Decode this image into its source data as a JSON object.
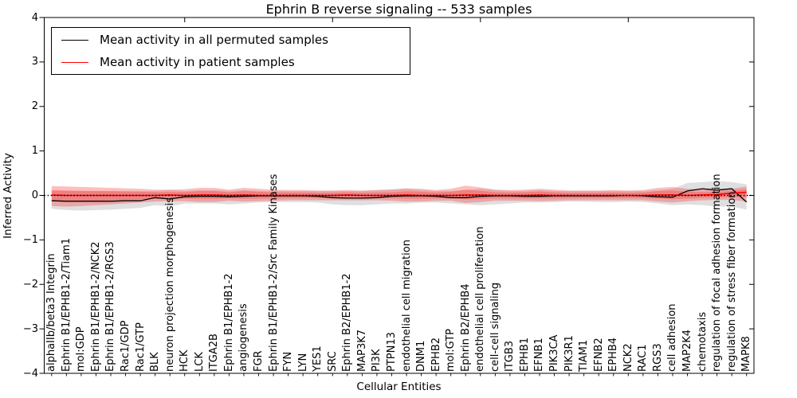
{
  "figure": {
    "title": "Ephrin B reverse signaling -- 533 samples",
    "xlabel": "Cellular Entities",
    "ylabel": "Inferred Activity"
  },
  "legend": {
    "position": "upper left",
    "entries": [
      {
        "label": "Mean activity in all permuted samples",
        "color": "#000000"
      },
      {
        "label": "Mean activity in patient samples",
        "color": "#ff0000"
      }
    ]
  },
  "chart_data": {
    "type": "line",
    "title": "Ephrin B reverse signaling -- 533 samples",
    "xlabel": "Cellular Entities",
    "ylabel": "Inferred Activity",
    "ylim": [
      -4,
      4
    ],
    "ytick_labels": [
      "4",
      "3",
      "2",
      "1",
      "0",
      "−1",
      "−2",
      "−3",
      "−4"
    ],
    "ytick_values": [
      4,
      3,
      2,
      1,
      0,
      -1,
      -2,
      -3,
      -4
    ],
    "xticks_top_values": [
      10,
      20,
      30,
      40
    ],
    "grid": false,
    "zero_line": {
      "value": 0,
      "style": "dotted",
      "color": "#000000"
    },
    "categories": [
      "alphaIIb/beta3 Integrin",
      "Ephrin B1/EPHB1-2/Tiam1",
      "mol:GDP",
      "Ephrin B1/EPHB1-2/NCK2",
      "Ephrin B1/EPHB1-2/RGS3",
      "Rac1/GDP",
      "Rac1/GTP",
      "BLK",
      "neuron projection morphogenesis",
      "HCK",
      "LCK",
      "ITGA2B",
      "Ephrin B1/EPHB1-2",
      "angiogenesis",
      "FGR",
      "Ephrin B1/EPHB1-2/Src Family Kinases",
      "FYN",
      "LYN",
      "YES1",
      "SRC",
      "Ephrin B2/EPHB1-2",
      "MAP3K7",
      "PI3K",
      "PTPN13",
      "endothelial cell migration",
      "DNM1",
      "EPHB2",
      "mol:GTP",
      "Ephrin B2/EPHB4",
      "endothelial cell proliferation",
      "cell-cell signaling",
      "ITGB3",
      "EPHB1",
      "EFNB1",
      "PIK3CA",
      "PIK3R1",
      "TIAM1",
      "EFNB2",
      "EPHB4",
      "NCK2",
      "RAC1",
      "RGS3",
      "cell adhesion",
      "MAP2K4",
      "chemotaxis",
      "regulation of focal adhesion formation",
      "regulation of stress fiber formation",
      "MAPK8"
    ],
    "series": [
      {
        "name": "Mean activity in all permuted samples",
        "color": "#000000",
        "values": [
          -0.12,
          -0.13,
          -0.13,
          -0.13,
          -0.13,
          -0.12,
          -0.12,
          -0.05,
          -0.08,
          -0.03,
          -0.02,
          -0.02,
          -0.03,
          -0.02,
          -0.01,
          -0.01,
          -0.01,
          -0.01,
          -0.02,
          -0.05,
          -0.06,
          -0.06,
          -0.05,
          -0.02,
          -0.01,
          -0.01,
          -0.02,
          -0.05,
          -0.05,
          -0.02,
          -0.01,
          -0.01,
          -0.02,
          -0.02,
          -0.01,
          -0.01,
          -0.01,
          -0.01,
          -0.01,
          0.0,
          -0.01,
          -0.03,
          -0.04,
          0.1,
          0.15,
          0.12,
          0.15,
          -0.15
        ]
      },
      {
        "name": "Mean activity in patient samples",
        "color": "#ff0000",
        "values": [
          0.01,
          0.0,
          0.0,
          0.0,
          0.0,
          0.0,
          0.0,
          0.0,
          0.01,
          0.0,
          0.01,
          0.01,
          0.0,
          0.01,
          0.0,
          0.0,
          0.0,
          0.0,
          0.0,
          0.0,
          0.01,
          0.0,
          0.0,
          0.0,
          0.01,
          0.0,
          0.0,
          0.0,
          0.01,
          0.01,
          0.0,
          0.0,
          0.0,
          0.01,
          0.0,
          0.0,
          0.0,
          0.0,
          0.0,
          0.0,
          0.0,
          0.01,
          0.01,
          0.0,
          0.01,
          0.02,
          0.05,
          0.07
        ]
      }
    ],
    "bands": [
      {
        "name": "permuted samples range",
        "fill": "rgba(150,150,150,0.30)",
        "low": [
          -0.3,
          -0.33,
          -0.34,
          -0.33,
          -0.32,
          -0.3,
          -0.28,
          -0.22,
          -0.25,
          -0.18,
          -0.18,
          -0.18,
          -0.2,
          -0.18,
          -0.16,
          -0.15,
          -0.15,
          -0.15,
          -0.16,
          -0.2,
          -0.22,
          -0.22,
          -0.2,
          -0.18,
          -0.18,
          -0.16,
          -0.16,
          -0.18,
          -0.2,
          -0.22,
          -0.2,
          -0.18,
          -0.16,
          -0.16,
          -0.15,
          -0.14,
          -0.14,
          -0.15,
          -0.15,
          -0.14,
          -0.15,
          -0.18,
          -0.22,
          -0.2,
          -0.22,
          -0.25,
          -0.25,
          -0.32
        ],
        "high": [
          0.1,
          0.1,
          0.1,
          0.1,
          0.1,
          0.1,
          0.1,
          0.1,
          0.12,
          0.1,
          0.12,
          0.12,
          0.1,
          0.12,
          0.1,
          0.1,
          0.1,
          0.1,
          0.1,
          0.1,
          0.1,
          0.1,
          0.12,
          0.14,
          0.15,
          0.12,
          0.1,
          0.1,
          0.12,
          0.15,
          0.12,
          0.1,
          0.1,
          0.12,
          0.1,
          0.1,
          0.1,
          0.1,
          0.1,
          0.1,
          0.1,
          0.12,
          0.15,
          0.28,
          0.3,
          0.32,
          0.3,
          0.25
        ]
      },
      {
        "name": "patient samples range",
        "fill": "rgba(255,40,40,0.30)",
        "low": [
          -0.24,
          -0.25,
          -0.24,
          -0.22,
          -0.2,
          -0.18,
          -0.16,
          -0.14,
          -0.13,
          -0.13,
          -0.15,
          -0.15,
          -0.12,
          -0.14,
          -0.13,
          -0.12,
          -0.11,
          -0.11,
          -0.11,
          -0.11,
          -0.11,
          -0.11,
          -0.11,
          -0.12,
          -0.14,
          -0.14,
          -0.12,
          -0.12,
          -0.17,
          -0.15,
          -0.12,
          -0.12,
          -0.12,
          -0.13,
          -0.12,
          -0.11,
          -0.11,
          -0.11,
          -0.11,
          -0.11,
          -0.11,
          -0.14,
          -0.16,
          -0.13,
          -0.11,
          -0.1,
          -0.1,
          -0.14
        ],
        "high": [
          0.21,
          0.2,
          0.19,
          0.18,
          0.17,
          0.16,
          0.15,
          0.13,
          0.13,
          0.14,
          0.17,
          0.17,
          0.13,
          0.17,
          0.15,
          0.13,
          0.12,
          0.12,
          0.11,
          0.11,
          0.12,
          0.11,
          0.12,
          0.13,
          0.16,
          0.15,
          0.12,
          0.15,
          0.22,
          0.18,
          0.13,
          0.12,
          0.13,
          0.15,
          0.13,
          0.11,
          0.11,
          0.11,
          0.12,
          0.11,
          0.12,
          0.17,
          0.19,
          0.15,
          0.13,
          0.13,
          0.15,
          0.2
        ]
      }
    ],
    "inner_band_scale": 0.55
  }
}
